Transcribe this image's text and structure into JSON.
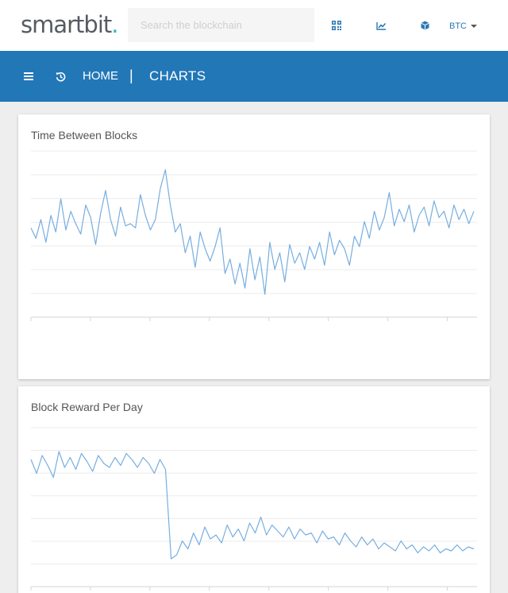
{
  "header": {
    "logo_text": "smartbit",
    "logo_dot": ".",
    "search": {
      "placeholder": "Search the blockchain",
      "value": ""
    },
    "icons": [
      "qr-code-icon",
      "chart-line-icon",
      "cube-icon"
    ],
    "currency": "BTC"
  },
  "navbar": {
    "icons": [
      "menu-icon",
      "history-icon"
    ],
    "breadcrumb": {
      "home": "HOME",
      "separator": "|",
      "current": "CHARTS"
    }
  },
  "colors": {
    "brand_blue": "#2277b7",
    "line": "#76aee0",
    "logo_dot": "#2bb6c5"
  },
  "chart_data": [
    {
      "type": "line",
      "title": "Time Between Blocks",
      "grid": true,
      "x_ticks": 8,
      "y": [
        7.8,
        7.3,
        8.2,
        7.1,
        8.4,
        7.6,
        9.2,
        7.7,
        8.6,
        8.0,
        7.5,
        8.9,
        8.3,
        7.0,
        8.5,
        9.6,
        8.2,
        7.4,
        8.8,
        7.9,
        8.0,
        7.8,
        9.4,
        8.4,
        7.7,
        8.2,
        9.7,
        10.6,
        8.9,
        7.6,
        8.0,
        6.6,
        7.4,
        5.9,
        7.6,
        6.8,
        6.2,
        6.9,
        7.8,
        5.6,
        6.3,
        5.1,
        6.1,
        4.9,
        6.8,
        5.3,
        6.4,
        4.6,
        7.1,
        5.8,
        6.6,
        5.2,
        7.0,
        6.1,
        6.6,
        5.8,
        6.9,
        6.3,
        7.1,
        6.0,
        7.6,
        6.5,
        7.2,
        6.8,
        6.0,
        7.4,
        6.9,
        8.1,
        7.3,
        8.6,
        7.7,
        8.3,
        9.5,
        7.9,
        8.7,
        8.1,
        8.9,
        7.6,
        8.4,
        8.8,
        7.9,
        9.1,
        8.3,
        8.6,
        7.8,
        8.9,
        8.2,
        8.7,
        8.0,
        8.6
      ]
    },
    {
      "type": "line",
      "title": "Block Reward Per Day",
      "grid": true,
      "x_ticks": 8,
      "y": [
        5.9,
        5.2,
        6.1,
        5.6,
        5.0,
        6.3,
        5.5,
        6.0,
        5.4,
        6.2,
        5.8,
        5.3,
        6.1,
        5.7,
        5.5,
        6.0,
        5.6,
        6.2,
        5.9,
        5.5,
        6.0,
        5.7,
        5.2,
        5.9,
        5.4,
        0.9,
        1.1,
        1.8,
        1.4,
        2.2,
        1.6,
        2.5,
        1.9,
        2.1,
        1.7,
        2.6,
        2.0,
        2.4,
        1.8,
        2.7,
        2.2,
        3.0,
        2.1,
        2.6,
        2.3,
        2.0,
        2.5,
        1.9,
        2.4,
        2.1,
        2.2,
        1.7,
        2.3,
        1.9,
        2.0,
        1.6,
        2.2,
        1.8,
        1.5,
        2.0,
        1.6,
        1.9,
        1.4,
        1.7,
        1.5,
        1.3,
        1.8,
        1.4,
        1.6,
        1.2,
        1.5,
        1.3,
        1.6,
        1.2,
        1.4,
        1.3,
        1.6,
        1.3,
        1.5,
        1.4
      ]
    }
  ]
}
